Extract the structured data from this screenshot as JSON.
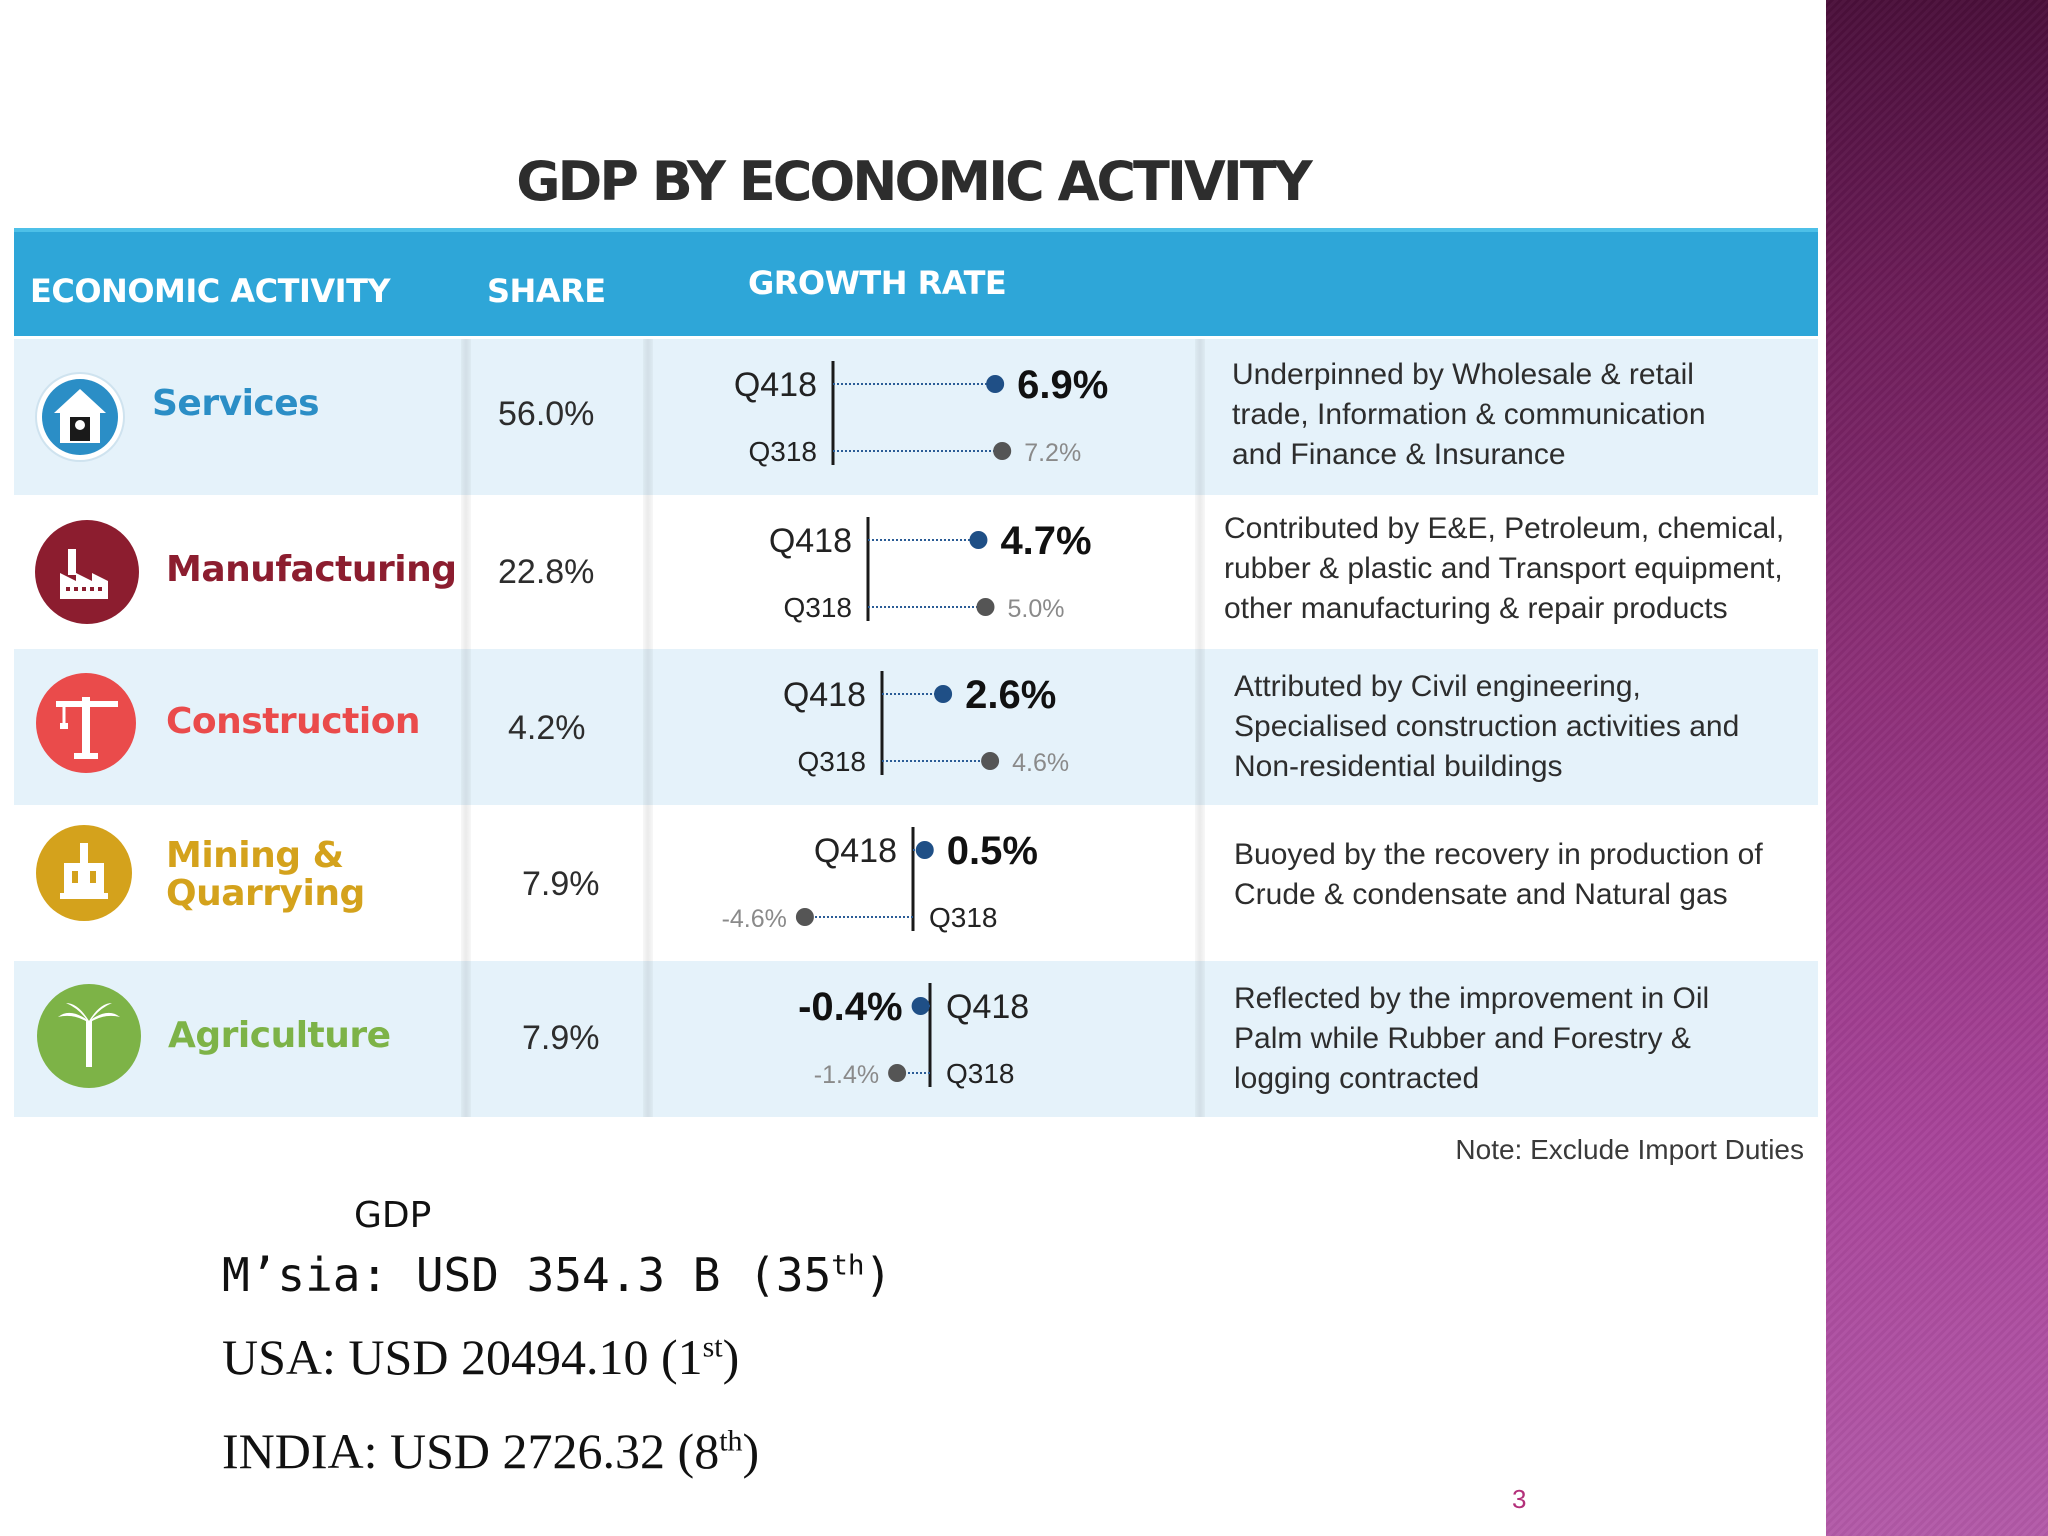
{
  "slide": {
    "page_number": "3",
    "accent_band_color": "#8e3079"
  },
  "infographic": {
    "title": "GDP BY ECONOMIC ACTIVITY",
    "headers": {
      "activity": "ECONOMIC ACTIVITY",
      "share": "SHARE",
      "growth": "GROWTH RATE"
    },
    "rows": [
      {
        "name": "Services",
        "color": "#2b8ec6",
        "icon": "services-building-icon",
        "share": "56.0%",
        "q418_label": "Q418",
        "q318_label": "Q318",
        "q418_value": "6.9%",
        "q318_value": "7.2%",
        "desc": [
          "Underpinned by Wholesale & retail",
          "trade, Information & communication",
          "and  Finance & Insurance"
        ]
      },
      {
        "name": "Manufacturing",
        "color": "#8c1d2f",
        "icon": "factory-icon",
        "share": "22.8%",
        "q418_label": "Q418",
        "q318_label": "Q318",
        "q418_value": "4.7%",
        "q318_value": "5.0%",
        "desc": [
          "Contributed by E&E, Petroleum, chemical,",
          "rubber & plastic and Transport equipment,",
          "other manufacturing & repair products"
        ]
      },
      {
        "name": "Construction",
        "color": "#ea4b4b",
        "icon": "crane-icon",
        "share": "4.2%",
        "q418_label": "Q418",
        "q318_label": "Q318",
        "q418_value": "2.6%",
        "q318_value": "4.6%",
        "desc": [
          "Attributed by Civil engineering,",
          "Specialised construction activities and",
          "Non-residential buildings"
        ]
      },
      {
        "name": "Mining &",
        "name2": "Quarrying",
        "color": "#d4a21c",
        "icon": "oil-rig-icon",
        "share": "7.9%",
        "q418_label": "Q418",
        "q318_label": "Q318",
        "q418_value": "0.5%",
        "q318_value": "-4.6%",
        "desc": [
          "Buoyed by the recovery in production of",
          "Crude & condensate and Natural gas"
        ]
      },
      {
        "name": "Agriculture",
        "color": "#7db347",
        "icon": "palm-tree-icon",
        "share": "7.9%",
        "q418_label": "Q418",
        "q318_label": "Q318",
        "q418_value": "-0.4%",
        "q318_value": "-1.4%",
        "desc": [
          "Reflected by the improvement in Oil",
          "Palm while Rubber and Forestry &",
          "logging contracted"
        ]
      }
    ],
    "growth_chart": {
      "q418": [
        6.9,
        4.7,
        2.6,
        0.5,
        -0.4
      ],
      "q318": [
        7.2,
        5.0,
        4.6,
        -4.6,
        -1.4
      ]
    },
    "note": "Note: Exclude Import Duties"
  },
  "gdp": {
    "heading": "GDP",
    "malaysia": {
      "text": "M’sia: USD 354.3 B (35",
      "suffix": "th",
      "close": ")"
    },
    "usa": {
      "text": "USA: USD 20494.10 (1",
      "suffix": "st",
      "close": ")"
    },
    "india": {
      "text": "INDIA: USD 2726.32 (8",
      "suffix": "th",
      "close": ")"
    }
  }
}
